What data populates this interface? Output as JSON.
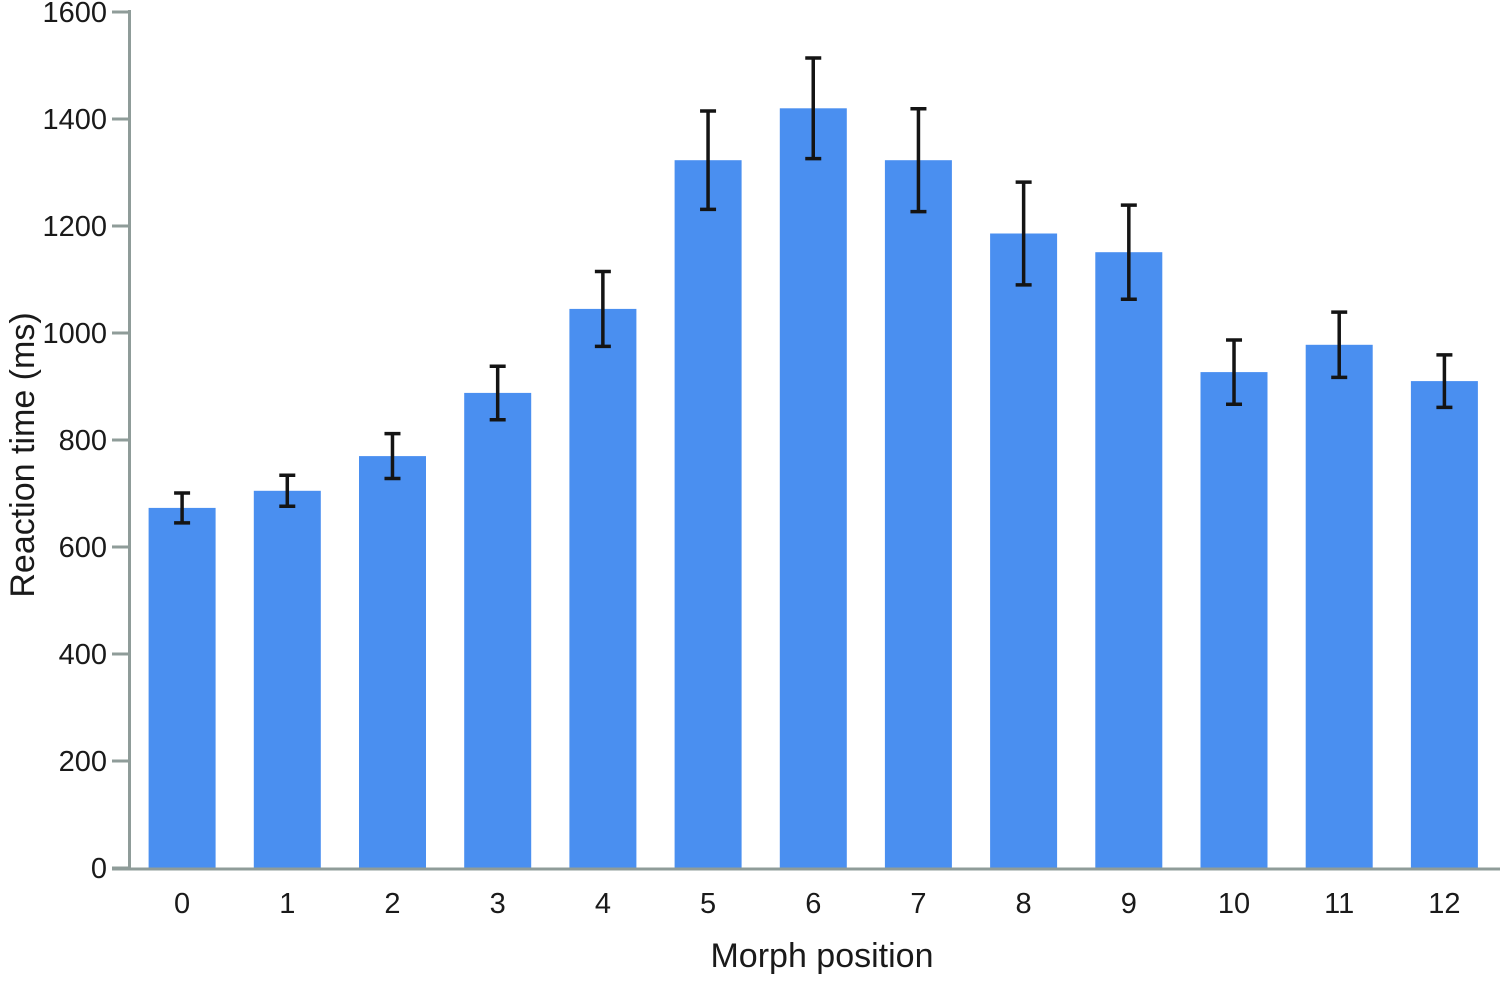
{
  "chart_data": {
    "type": "bar",
    "title": "",
    "xlabel": "Morph position",
    "ylabel": "Reaction time (ms)",
    "categories": [
      "0",
      "1",
      "2",
      "3",
      "4",
      "5",
      "6",
      "7",
      "8",
      "9",
      "10",
      "11",
      "12"
    ],
    "series": [
      {
        "name": "Reaction time",
        "values": [
          673,
          705,
          770,
          888,
          1045,
          1323,
          1420,
          1323,
          1186,
          1151,
          927,
          978,
          910
        ],
        "errors": [
          28,
          29,
          42,
          50,
          70,
          92,
          94,
          96,
          96,
          88,
          60,
          61,
          49
        ]
      }
    ],
    "y_ticks": [
      0,
      200,
      400,
      600,
      800,
      1000,
      1200,
      1400,
      1600
    ],
    "ylim": [
      0,
      1600
    ],
    "grid": false,
    "legend_position": "none",
    "colors": {
      "bar": "#4a8ff0",
      "error_bar": "#141414",
      "axis": "#8f9c99",
      "text": "#1a1a1a"
    }
  }
}
